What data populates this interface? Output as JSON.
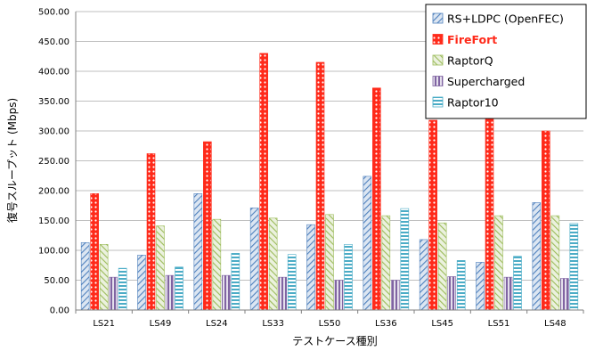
{
  "chart_data": {
    "type": "bar",
    "xlabel": "テストケース種別",
    "ylabel": "復号スループット (Mbps)",
    "ylim": [
      0,
      500
    ],
    "yticks": [
      "0.00",
      "50.00",
      "100.00",
      "150.00",
      "200.00",
      "250.00",
      "300.00",
      "350.00",
      "400.00",
      "450.00",
      "500.00"
    ],
    "grid": true,
    "legend_position": "top-right",
    "categories": [
      "LS21",
      "LS49",
      "LS24",
      "LS33",
      "LS50",
      "LS36",
      "LS45",
      "LS51",
      "LS48"
    ],
    "series": [
      {
        "name": "RS+LDPC (OpenFEC)",
        "pattern": "diagonal-stripes",
        "color": "#4f81bd",
        "values": [
          113,
          92,
          195,
          171,
          143,
          224,
          118,
          80,
          180
        ]
      },
      {
        "name": "FireFort",
        "pattern": "dotted",
        "color": "#ff2a1a",
        "values": [
          195,
          262,
          282,
          430,
          415,
          372,
          318,
          325,
          300
        ]
      },
      {
        "name": "RaptorQ",
        "pattern": "diagonal-stripes",
        "color": "#9bbb59",
        "values": [
          110,
          141,
          152,
          154,
          160,
          158,
          146,
          158,
          158
        ]
      },
      {
        "name": "Supercharged",
        "pattern": "vertical-stripes",
        "color": "#8064a2",
        "values": [
          55,
          58,
          58,
          55,
          50,
          50,
          56,
          55,
          53
        ]
      },
      {
        "name": "Raptor10",
        "pattern": "horizontal-stripes",
        "color": "#4bacc6",
        "values": [
          70,
          72,
          95,
          93,
          110,
          170,
          83,
          90,
          145
        ]
      }
    ]
  }
}
